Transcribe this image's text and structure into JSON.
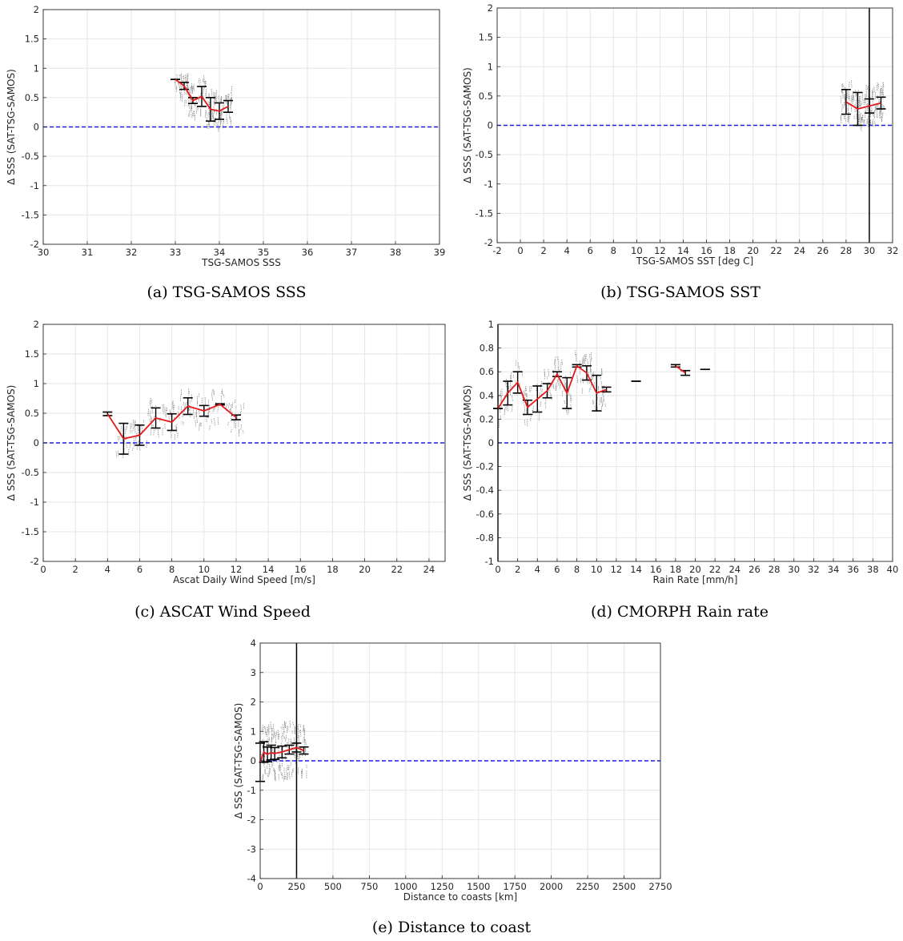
{
  "figure": {
    "colors": {
      "mean_line": "#e41a1c",
      "zero_line": "#1f1fe0",
      "errorbar": "#000000",
      "scatter": "#8c8c8c",
      "grid": "#e6e6e6"
    }
  },
  "chart_data": [
    {
      "id": "a",
      "type": "line",
      "caption": "(a) TSG-SAMOS SSS",
      "xlabel": "TSG-SAMOS SSS",
      "ylabel": "Δ SSS (SAT-TSG-SAMOS)",
      "xlim": [
        30,
        39
      ],
      "ylim": [
        -2,
        2
      ],
      "xticks": [
        30,
        31,
        32,
        33,
        34,
        35,
        36,
        37,
        38,
        39
      ],
      "yticks": [
        -2,
        -1.5,
        -1,
        -0.5,
        0,
        0.5,
        1,
        1.5,
        2
      ],
      "grid": true,
      "zero_line": 0,
      "vline": null,
      "x": [
        33.0,
        33.2,
        33.4,
        33.6,
        33.8,
        34.0,
        34.2
      ],
      "mean": [
        0.81,
        0.7,
        0.45,
        0.52,
        0.3,
        0.27,
        0.35
      ],
      "err": [
        0.0,
        0.06,
        0.05,
        0.17,
        0.2,
        0.14,
        0.1
      ],
      "scatter": {
        "xmin": 33.0,
        "xmax": 34.3,
        "ymin": -0.25,
        "ymax": 0.85
      }
    },
    {
      "id": "b",
      "type": "line",
      "caption": "(b) TSG-SAMOS SST",
      "xlabel": "TSG-SAMOS SST [deg C]",
      "ylabel": "Δ SSS (SAT-TSG-SAMOS)",
      "xlim": [
        -2,
        32
      ],
      "ylim": [
        -2,
        2
      ],
      "xticks": [
        -2,
        0,
        2,
        4,
        6,
        8,
        10,
        12,
        14,
        16,
        18,
        20,
        22,
        24,
        26,
        28,
        30,
        32
      ],
      "yticks": [
        -2,
        -1.5,
        -1,
        -0.5,
        0,
        0.5,
        1,
        1.5,
        2
      ],
      "grid": true,
      "zero_line": 0,
      "vline": 30,
      "x": [
        28.0,
        29.0,
        30.0,
        31.0
      ],
      "mean": [
        0.4,
        0.28,
        0.33,
        0.38
      ],
      "err": [
        0.21,
        0.28,
        0.12,
        0.1
      ],
      "scatter": {
        "xmin": 27.5,
        "xmax": 31.3,
        "ymin": -0.25,
        "ymax": 0.95
      }
    },
    {
      "id": "c",
      "type": "line",
      "caption": "(c) ASCAT Wind Speed",
      "xlabel": "Ascat Daily Wind Speed [m/s]",
      "ylabel": "Δ SSS (SAT-TSG-SAMOS)",
      "xlim": [
        0,
        25
      ],
      "ylim": [
        -2,
        2
      ],
      "xticks": [
        0,
        2,
        4,
        6,
        8,
        10,
        12,
        14,
        16,
        18,
        20,
        22,
        24
      ],
      "yticks": [
        -2,
        -1.5,
        -1,
        -0.5,
        0,
        0.5,
        1,
        1.5,
        2
      ],
      "grid": true,
      "zero_line": 0,
      "vline": null,
      "x": [
        4,
        5,
        6,
        7,
        8,
        9,
        10,
        11,
        12
      ],
      "mean": [
        0.49,
        0.07,
        0.13,
        0.42,
        0.35,
        0.62,
        0.54,
        0.65,
        0.43
      ],
      "err": [
        0.03,
        0.26,
        0.17,
        0.17,
        0.14,
        0.14,
        0.09,
        0.01,
        0.04
      ],
      "scatter": {
        "xmin": 4.5,
        "xmax": 12.5,
        "ymin": -0.25,
        "ymax": 0.85
      }
    },
    {
      "id": "d",
      "type": "line",
      "caption": "(d) CMORPH Rain rate",
      "xlabel": "Rain Rate [mm/h]",
      "ylabel": "Δ SSS (SAT-TSG-SAMOS)",
      "xlim": [
        0,
        40
      ],
      "ylim": [
        -1,
        1
      ],
      "xticks": [
        0,
        2,
        4,
        6,
        8,
        10,
        12,
        14,
        16,
        18,
        20,
        22,
        24,
        26,
        28,
        30,
        32,
        34,
        36,
        38,
        40
      ],
      "yticks": [
        -1,
        -0.8,
        -0.6,
        -0.4,
        -0.2,
        0,
        0.2,
        0.4,
        0.6,
        0.8,
        1
      ],
      "grid": true,
      "zero_line": 0,
      "vline": 0,
      "x": [
        0,
        1,
        2,
        3,
        4,
        5,
        6,
        7,
        8,
        9,
        10,
        11
      ],
      "mean": [
        0.29,
        0.42,
        0.51,
        0.3,
        0.37,
        0.44,
        0.58,
        0.42,
        0.65,
        0.59,
        0.42,
        0.45
      ],
      "err": [
        0.0,
        0.1,
        0.09,
        0.06,
        0.11,
        0.06,
        0.02,
        0.13,
        0.01,
        0.06,
        0.15,
        0.02
      ],
      "extra_points": [
        {
          "x": [
            14
          ],
          "mean": [
            0.52
          ],
          "err": [
            0.0
          ]
        },
        {
          "x": [
            18,
            19
          ],
          "mean": [
            0.65,
            0.59
          ],
          "err": [
            0.01,
            0.02
          ]
        },
        {
          "x": [
            21
          ],
          "mean": [
            0.62
          ],
          "err": [
            0.0
          ]
        }
      ],
      "scatter": {
        "xmin": 0,
        "xmax": 11,
        "ymin": 0.15,
        "ymax": 0.76
      }
    },
    {
      "id": "e",
      "type": "line",
      "caption": "(e) Distance to coast",
      "xlabel": "Distance to coasts [km]",
      "ylabel": "Δ SSS (SAT-TSG-SAMOS)",
      "xlim": [
        0,
        2750
      ],
      "ylim": [
        -4,
        4
      ],
      "xticks": [
        0,
        250,
        500,
        750,
        1000,
        1250,
        1500,
        1750,
        2000,
        2250,
        2500,
        2750
      ],
      "yticks": [
        -4,
        -3,
        -2,
        -1,
        0,
        1,
        2,
        3,
        4
      ],
      "grid": true,
      "zero_line": 0,
      "vline": 250,
      "x": [
        0,
        25,
        50,
        75,
        100,
        150,
        200,
        250,
        300
      ],
      "mean": [
        -0.05,
        0.3,
        0.22,
        0.28,
        0.25,
        0.3,
        0.38,
        0.45,
        0.35
      ],
      "err": [
        0.65,
        0.35,
        0.25,
        0.25,
        0.2,
        0.2,
        0.15,
        0.15,
        0.12
      ],
      "scatter": {
        "xmin": 0,
        "xmax": 320,
        "ymin": -1.8,
        "ymax": 1.6
      }
    }
  ]
}
